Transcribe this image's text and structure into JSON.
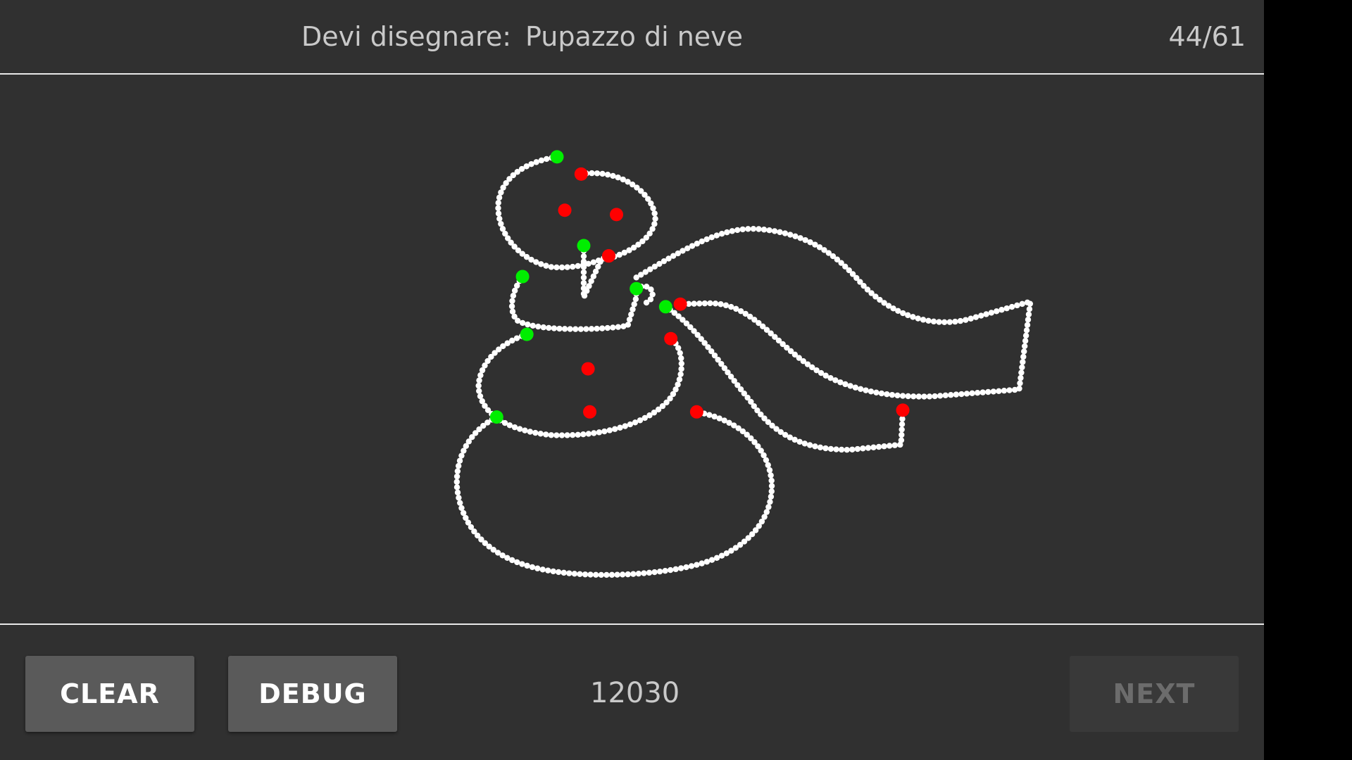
{
  "header": {
    "prompt_label": "Devi disegnare:",
    "prompt_word": "Pupazzo di neve",
    "progress": "44/61"
  },
  "footer": {
    "clear_label": "CLEAR",
    "debug_label": "DEBUG",
    "score": "12030",
    "next_label": "NEXT"
  },
  "colors": {
    "background": "#303030",
    "stroke": "#ffffff",
    "stroke_start_point": "#00ee00",
    "stroke_end_point": "#ff0000",
    "button": "#5a5a5a",
    "button_disabled": "#393939"
  }
}
